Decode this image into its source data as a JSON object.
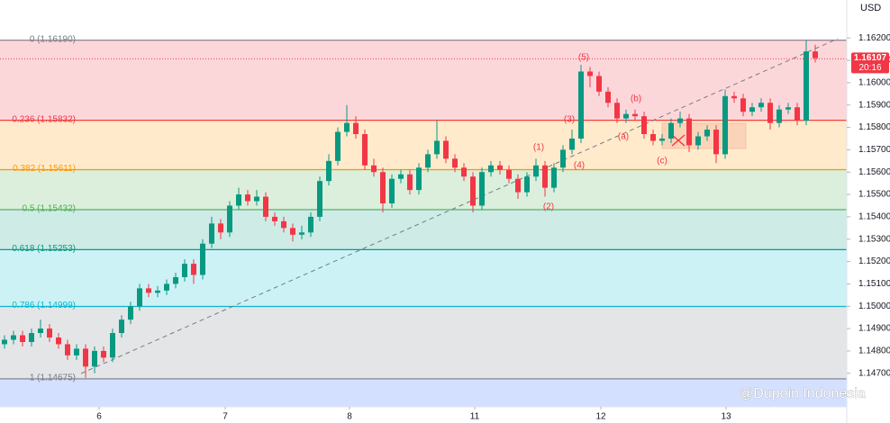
{
  "chart_data": {
    "type": "candlestick",
    "currency": "USD",
    "ylim": [
      1.1455,
      1.1637
    ],
    "yticks": [
      {
        "value": 1.147,
        "label": "1.14700"
      },
      {
        "value": 1.148,
        "label": "1.14800"
      },
      {
        "value": 1.149,
        "label": "1.14900"
      },
      {
        "value": 1.15,
        "label": "1.15000"
      },
      {
        "value": 1.151,
        "label": "1.15100"
      },
      {
        "value": 1.152,
        "label": "1.15200"
      },
      {
        "value": 1.153,
        "label": "1.15300"
      },
      {
        "value": 1.154,
        "label": "1.15400"
      },
      {
        "value": 1.155,
        "label": "1.15500"
      },
      {
        "value": 1.156,
        "label": "1.15600"
      },
      {
        "value": 1.157,
        "label": "1.15700"
      },
      {
        "value": 1.158,
        "label": "1.15800"
      },
      {
        "value": 1.159,
        "label": "1.15900"
      },
      {
        "value": 1.16,
        "label": "1.16000"
      },
      {
        "value": 1.161,
        "label": "1.16100"
      },
      {
        "value": 1.162,
        "label": "1.16200"
      }
    ],
    "xlim": [
      -0.5,
      93.5
    ],
    "xticks": [
      {
        "value": 10.5,
        "label": "6"
      },
      {
        "value": 24.5,
        "label": "7"
      },
      {
        "value": 38.3,
        "label": "8"
      },
      {
        "value": 52.2,
        "label": "11"
      },
      {
        "value": 66.2,
        "label": "12"
      },
      {
        "value": 80.1,
        "label": "13"
      }
    ],
    "up_color": "#089981",
    "down_color": "#f23645",
    "candles": [
      [
        1.1483,
        1.1487,
        1.1481,
        1.1485
      ],
      [
        1.1485,
        1.1489,
        1.1483,
        1.1487
      ],
      [
        1.1487,
        1.1489,
        1.1482,
        1.1484
      ],
      [
        1.1484,
        1.149,
        1.1482,
        1.1488
      ],
      [
        1.1488,
        1.1494,
        1.1486,
        1.149
      ],
      [
        1.149,
        1.1492,
        1.1484,
        1.1486
      ],
      [
        1.1486,
        1.1488,
        1.1481,
        1.1483
      ],
      [
        1.1483,
        1.1485,
        1.1476,
        1.1478
      ],
      [
        1.1478,
        1.1483,
        1.1476,
        1.1481
      ],
      [
        1.1481,
        1.1483,
        1.1468,
        1.1473
      ],
      [
        1.1473,
        1.1482,
        1.147,
        1.148
      ],
      [
        1.148,
        1.1482,
        1.1475,
        1.1477
      ],
      [
        1.1477,
        1.149,
        1.1475,
        1.1488
      ],
      [
        1.1488,
        1.1496,
        1.1486,
        1.1494
      ],
      [
        1.1494,
        1.1502,
        1.1492,
        1.15
      ],
      [
        1.15,
        1.151,
        1.1498,
        1.1508
      ],
      [
        1.1508,
        1.151,
        1.1504,
        1.1506
      ],
      [
        1.1506,
        1.1509,
        1.1504,
        1.1507
      ],
      [
        1.1507,
        1.1512,
        1.1505,
        1.151
      ],
      [
        1.151,
        1.1515,
        1.1508,
        1.1513
      ],
      [
        1.1513,
        1.1521,
        1.1511,
        1.1519
      ],
      [
        1.1519,
        1.1521,
        1.151,
        1.1514
      ],
      [
        1.1514,
        1.153,
        1.1512,
        1.1528
      ],
      [
        1.1528,
        1.154,
        1.1526,
        1.1537
      ],
      [
        1.1537,
        1.1539,
        1.153,
        1.1533
      ],
      [
        1.1533,
        1.1547,
        1.1531,
        1.1545
      ],
      [
        1.1545,
        1.1553,
        1.1543,
        1.155
      ],
      [
        1.155,
        1.1552,
        1.1545,
        1.1547
      ],
      [
        1.1547,
        1.1552,
        1.1545,
        1.1549
      ],
      [
        1.1549,
        1.1551,
        1.1538,
        1.154
      ],
      [
        1.154,
        1.1542,
        1.1536,
        1.1538
      ],
      [
        1.1538,
        1.154,
        1.1533,
        1.1535
      ],
      [
        1.1535,
        1.1537,
        1.1529,
        1.1532
      ],
      [
        1.1532,
        1.1536,
        1.153,
        1.1533
      ],
      [
        1.1533,
        1.1542,
        1.1531,
        1.154
      ],
      [
        1.154,
        1.1558,
        1.1538,
        1.1556
      ],
      [
        1.1556,
        1.1568,
        1.1554,
        1.1565
      ],
      [
        1.1565,
        1.158,
        1.1563,
        1.1578
      ],
      [
        1.1578,
        1.159,
        1.1576,
        1.1582
      ],
      [
        1.1582,
        1.1585,
        1.1575,
        1.1577
      ],
      [
        1.1577,
        1.1579,
        1.1561,
        1.1563
      ],
      [
        1.1563,
        1.1566,
        1.1558,
        1.156
      ],
      [
        1.156,
        1.1562,
        1.1542,
        1.1546
      ],
      [
        1.1546,
        1.1559,
        1.1544,
        1.1557
      ],
      [
        1.1557,
        1.1561,
        1.1555,
        1.1559
      ],
      [
        1.1559,
        1.1561,
        1.155,
        1.1552
      ],
      [
        1.1552,
        1.1564,
        1.155,
        1.1562
      ],
      [
        1.1562,
        1.157,
        1.156,
        1.1568
      ],
      [
        1.1568,
        1.1583,
        1.1566,
        1.1574
      ],
      [
        1.1574,
        1.1576,
        1.1564,
        1.1566
      ],
      [
        1.1566,
        1.1568,
        1.156,
        1.1562
      ],
      [
        1.1562,
        1.1564,
        1.1556,
        1.1558
      ],
      [
        1.1558,
        1.156,
        1.1542,
        1.1545
      ],
      [
        1.1545,
        1.1562,
        1.1543,
        1.156
      ],
      [
        1.156,
        1.1565,
        1.1558,
        1.1563
      ],
      [
        1.1563,
        1.1565,
        1.1559,
        1.1561
      ],
      [
        1.1561,
        1.1563,
        1.1555,
        1.1557
      ],
      [
        1.1557,
        1.1559,
        1.1548,
        1.1551
      ],
      [
        1.1551,
        1.156,
        1.1549,
        1.1558
      ],
      [
        1.1558,
        1.1566,
        1.1556,
        1.1563
      ],
      [
        1.1563,
        1.1565,
        1.1549,
        1.1553
      ],
      [
        1.1553,
        1.1564,
        1.1551,
        1.1562
      ],
      [
        1.1562,
        1.1572,
        1.156,
        1.157
      ],
      [
        1.157,
        1.1579,
        1.1568,
        1.1575
      ],
      [
        1.1575,
        1.1608,
        1.1573,
        1.1605
      ],
      [
        1.1605,
        1.1607,
        1.1598,
        1.1603
      ],
      [
        1.1603,
        1.1605,
        1.1594,
        1.1596
      ],
      [
        1.1596,
        1.1598,
        1.1589,
        1.1591
      ],
      [
        1.1591,
        1.1593,
        1.1582,
        1.1584
      ],
      [
        1.1584,
        1.1588,
        1.1582,
        1.1586
      ],
      [
        1.1586,
        1.1588,
        1.1583,
        1.1585
      ],
      [
        1.1585,
        1.1587,
        1.1575,
        1.1577
      ],
      [
        1.1577,
        1.1579,
        1.1572,
        1.1574
      ],
      [
        1.1574,
        1.1577,
        1.1572,
        1.1575
      ],
      [
        1.1575,
        1.1584,
        1.1573,
        1.1582
      ],
      [
        1.1582,
        1.1587,
        1.158,
        1.1584
      ],
      [
        1.1584,
        1.1586,
        1.1569,
        1.1572
      ],
      [
        1.1572,
        1.1578,
        1.157,
        1.1576
      ],
      [
        1.1576,
        1.1581,
        1.1574,
        1.1579
      ],
      [
        1.1579,
        1.1581,
        1.1564,
        1.1568
      ],
      [
        1.1568,
        1.1597,
        1.1566,
        1.1594
      ],
      [
        1.1594,
        1.1596,
        1.1591,
        1.1593
      ],
      [
        1.1593,
        1.1595,
        1.1585,
        1.1587
      ],
      [
        1.1587,
        1.1591,
        1.1585,
        1.1589
      ],
      [
        1.1589,
        1.1593,
        1.1587,
        1.1591
      ],
      [
        1.1591,
        1.1593,
        1.1579,
        1.1582
      ],
      [
        1.1582,
        1.159,
        1.158,
        1.1588
      ],
      [
        1.1588,
        1.1591,
        1.1586,
        1.1589
      ],
      [
        1.1589,
        1.1591,
        1.1581,
        1.1583
      ],
      [
        1.1583,
        1.1619,
        1.1581,
        1.1614
      ],
      [
        1.1614,
        1.1617,
        1.1609,
        1.1611
      ]
    ],
    "fib_levels": [
      {
        "label": "0 (1.16190)",
        "value": 1.1619,
        "color": "#787b86"
      },
      {
        "label": "0.236 (1.15832)",
        "value": 1.15832,
        "color": "#f23645"
      },
      {
        "label": "0.382 (1.15611)",
        "value": 1.15611,
        "color": "#ff9800"
      },
      {
        "label": "0.5 (1.15432)",
        "value": 1.15432,
        "color": "#4caf50"
      },
      {
        "label": "0.618 (1.15253)",
        "value": 1.15253,
        "color": "#089981"
      },
      {
        "label": "0.786 (1.14999)",
        "value": 1.14999,
        "color": "#00bcd4"
      },
      {
        "label": "1 (1.14675)",
        "value": 1.14675,
        "color": "#787b86"
      }
    ],
    "zero_band_color": "#f23645",
    "extension_color": "#2962ff",
    "last_price": {
      "value": 1.16107,
      "label": "1.16107",
      "countdown": "20:16",
      "color": "#f23645"
    },
    "annotations": [
      "(5)",
      "(b)",
      "(3)",
      "(a)",
      "(1)",
      "(4)",
      "(c)",
      "(2)"
    ],
    "watermark": "@Dupoin Indonesia"
  }
}
